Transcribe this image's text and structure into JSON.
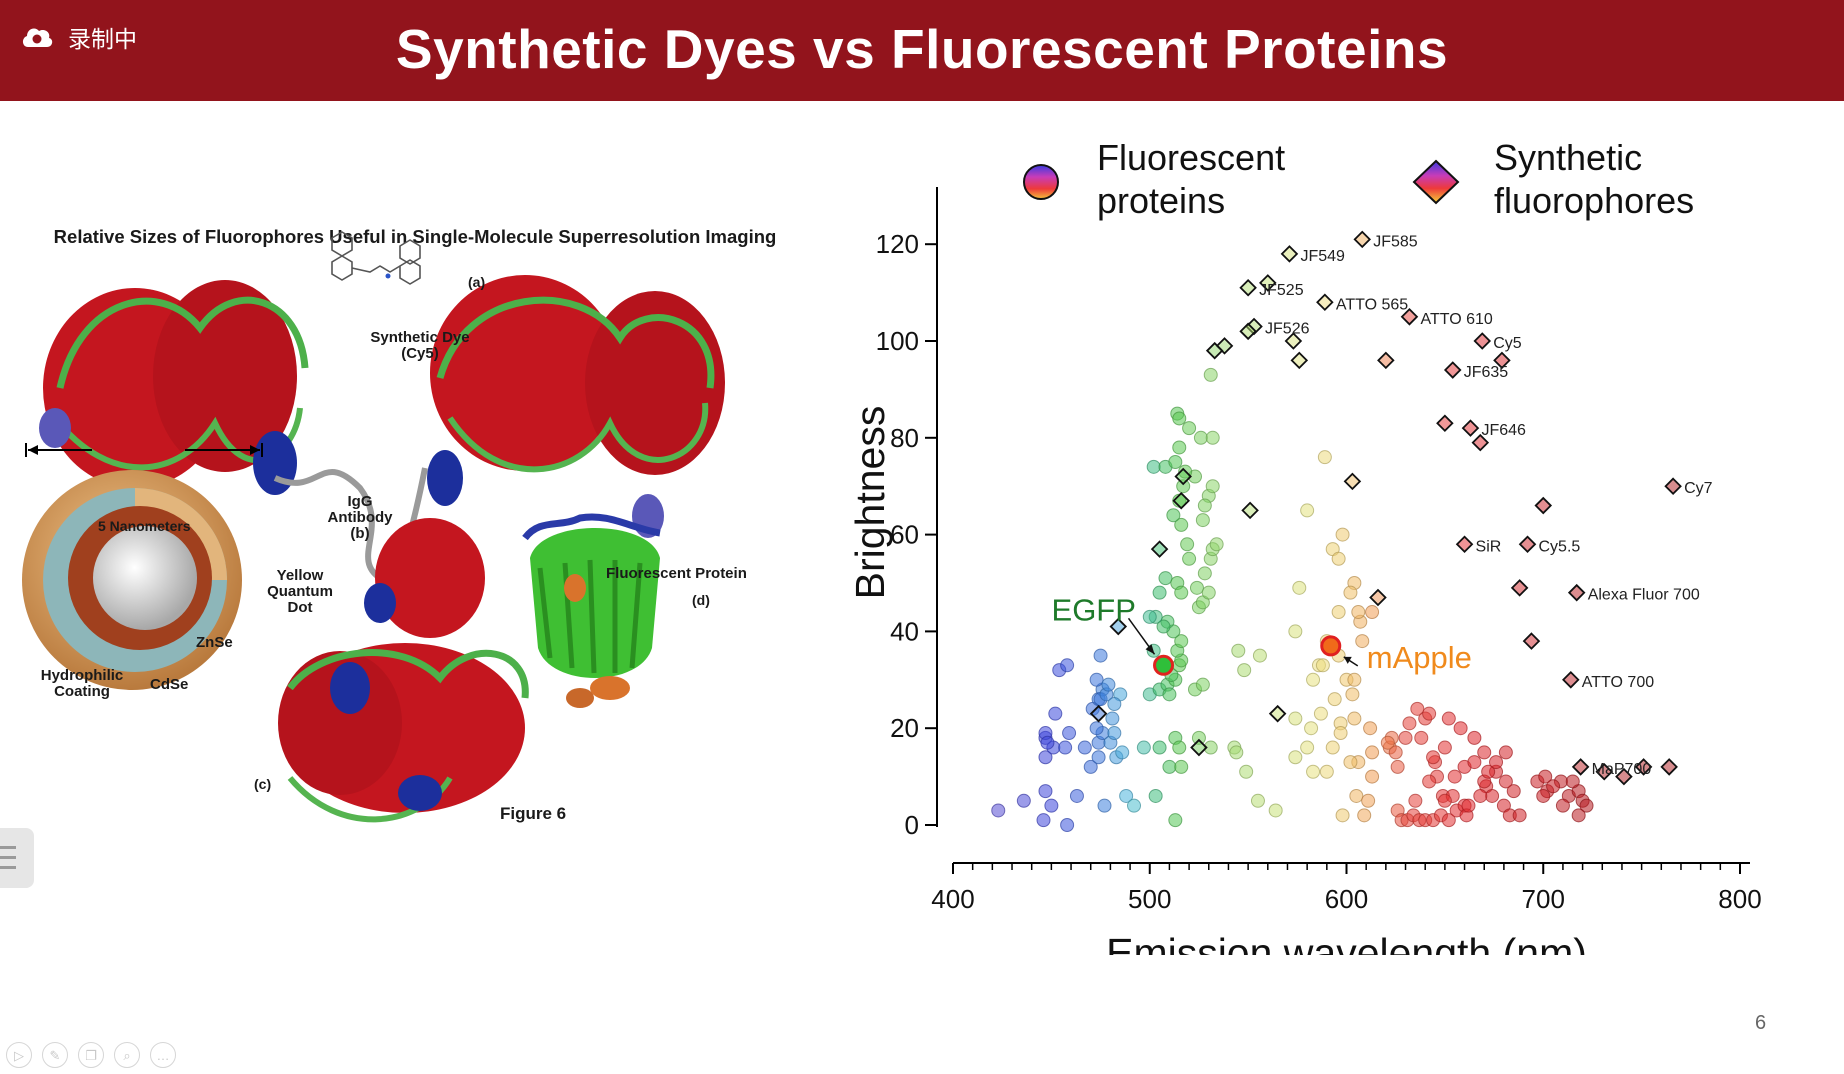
{
  "header": {
    "title": "Synthetic Dyes vs Fluorescent Proteins",
    "recording_label": "录制中"
  },
  "figure": {
    "title": "Relative Sizes of Fluorophores Useful in Single-Molecule Superresolution Imaging",
    "synthetic_dye": "Synthetic Dye",
    "synthetic_dye_sub": "(Cy5)",
    "label_a": "(a)",
    "scale": "5 Nanometers",
    "igg_1": "IgG",
    "igg_2": "Antibody",
    "igg_3": "(b)",
    "qd_1": "Yellow",
    "qd_2": "Quantum",
    "qd_3": "Dot",
    "znse": "ZnSe",
    "cdse": "CdSe",
    "hydro_1": "Hydrophilic",
    "hydro_2": "Coating",
    "label_c": "(c)",
    "fp": "Fluorescent Protein",
    "label_d": "(d)",
    "caption": "Figure 6"
  },
  "page_number": "6",
  "chart_data": {
    "type": "scatter",
    "xlabel": "Emission wavelength (nm)",
    "ylabel": "Brightness",
    "xlim": [
      400,
      800
    ],
    "ylim": [
      0,
      125
    ],
    "xticks": [
      400,
      500,
      600,
      700,
      800
    ],
    "yticks": [
      0,
      20,
      40,
      60,
      80,
      100,
      120
    ],
    "legend_position": "top",
    "legend": [
      {
        "label_line1": "Fluorescent",
        "label_line2": "proteins",
        "marker": "circle"
      },
      {
        "label_line1": "Synthetic",
        "label_line2": "fluorophores",
        "marker": "diamond"
      }
    ],
    "series": [
      {
        "marker": "circle",
        "points": [
          [
            423,
            3
          ],
          [
            436,
            5
          ],
          [
            446,
            1
          ],
          [
            447,
            7
          ],
          [
            458,
            0
          ],
          [
            450,
            4
          ],
          [
            463,
            6
          ],
          [
            477,
            4
          ],
          [
            470,
            12
          ],
          [
            488,
            6
          ],
          [
            492,
            4
          ],
          [
            503,
            6
          ],
          [
            513,
            1
          ],
          [
            447,
            14
          ],
          [
            447,
            18
          ],
          [
            447,
            19
          ],
          [
            451,
            16
          ],
          [
            452,
            23
          ],
          [
            448,
            17
          ],
          [
            457,
            16
          ],
          [
            459,
            19
          ],
          [
            467,
            16
          ],
          [
            474,
            14
          ],
          [
            474,
            17
          ],
          [
            476,
            19
          ],
          [
            480,
            17
          ],
          [
            483,
            14
          ],
          [
            482,
            19
          ],
          [
            486,
            15
          ],
          [
            481,
            22
          ],
          [
            473,
            20
          ],
          [
            471,
            24
          ],
          [
            474,
            26
          ],
          [
            476,
            28
          ],
          [
            473,
            30
          ],
          [
            475,
            26
          ],
          [
            478,
            27
          ],
          [
            475,
            35
          ],
          [
            479,
            29
          ],
          [
            485,
            27
          ],
          [
            482,
            25
          ],
          [
            454,
            32
          ],
          [
            458,
            33
          ],
          [
            497,
            16
          ],
          [
            505,
            16
          ],
          [
            513,
            18
          ],
          [
            515,
            16
          ],
          [
            525,
            18
          ],
          [
            510,
            12
          ],
          [
            516,
            12
          ],
          [
            531,
            16
          ],
          [
            543,
            16
          ],
          [
            500,
            27
          ],
          [
            505,
            28
          ],
          [
            509,
            29
          ],
          [
            510,
            27
          ],
          [
            513,
            30
          ],
          [
            511,
            31
          ],
          [
            515,
            33
          ],
          [
            516,
            34
          ],
          [
            514,
            36
          ],
          [
            516,
            38
          ],
          [
            512,
            40
          ],
          [
            509,
            42
          ],
          [
            507,
            41
          ],
          [
            503,
            43
          ],
          [
            500,
            43
          ],
          [
            502,
            36
          ],
          [
            505,
            48
          ],
          [
            508,
            51
          ],
          [
            514,
            50
          ],
          [
            516,
            48
          ],
          [
            525,
            45
          ],
          [
            527,
            46
          ],
          [
            524,
            49
          ],
          [
            530,
            48
          ],
          [
            528,
            52
          ],
          [
            531,
            55
          ],
          [
            532,
            57
          ],
          [
            534,
            58
          ],
          [
            520,
            55
          ],
          [
            519,
            58
          ],
          [
            516,
            62
          ],
          [
            512,
            64
          ],
          [
            515,
            67
          ],
          [
            517,
            70
          ],
          [
            523,
            72
          ],
          [
            530,
            68
          ],
          [
            532,
            70
          ],
          [
            528,
            66
          ],
          [
            527,
            63
          ],
          [
            518,
            73
          ],
          [
            502,
            74
          ],
          [
            508,
            74
          ],
          [
            513,
            75
          ],
          [
            515,
            78
          ],
          [
            514,
            85
          ],
          [
            515,
            84
          ],
          [
            520,
            82
          ],
          [
            526,
            80
          ],
          [
            532,
            80
          ],
          [
            531,
            93
          ],
          [
            523,
            28
          ],
          [
            527,
            29
          ],
          [
            545,
            36
          ],
          [
            556,
            35
          ],
          [
            548,
            32
          ],
          [
            544,
            15
          ],
          [
            549,
            11
          ],
          [
            555,
            5
          ],
          [
            564,
            3
          ],
          [
            574,
            22
          ],
          [
            582,
            20
          ],
          [
            586,
            33
          ],
          [
            574,
            40
          ],
          [
            576,
            49
          ],
          [
            580,
            65
          ],
          [
            589,
            76
          ],
          [
            593,
            57
          ],
          [
            596,
            55
          ],
          [
            598,
            60
          ],
          [
            604,
            50
          ],
          [
            602,
            48
          ],
          [
            596,
            44
          ],
          [
            590,
            38
          ],
          [
            588,
            33
          ],
          [
            583,
            30
          ],
          [
            587,
            23
          ],
          [
            597,
            21
          ],
          [
            594,
            26
          ],
          [
            600,
            30
          ],
          [
            603,
            27
          ],
          [
            596,
            35
          ],
          [
            604,
            30
          ],
          [
            607,
            42
          ],
          [
            606,
            44
          ],
          [
            608,
            38
          ],
          [
            613,
            44
          ],
          [
            606,
            13
          ],
          [
            613,
            15
          ],
          [
            602,
            13
          ],
          [
            593,
            16
          ],
          [
            597,
            19
          ],
          [
            604,
            22
          ],
          [
            612,
            20
          ],
          [
            613,
            10
          ],
          [
            605,
            6
          ],
          [
            598,
            2
          ],
          [
            609,
            2
          ],
          [
            611,
            5
          ],
          [
            574,
            14
          ],
          [
            580,
            16
          ],
          [
            583,
            11
          ],
          [
            590,
            11
          ],
          [
            626,
            12
          ],
          [
            630,
            18
          ],
          [
            632,
            21
          ],
          [
            636,
            24
          ],
          [
            640,
            22
          ],
          [
            638,
            18
          ],
          [
            645,
            13
          ],
          [
            650,
            16
          ],
          [
            646,
            10
          ],
          [
            635,
            5
          ],
          [
            642,
            9
          ],
          [
            649,
            6
          ],
          [
            655,
            10
          ],
          [
            660,
            12
          ],
          [
            665,
            13
          ],
          [
            671,
            8
          ],
          [
            674,
            6
          ],
          [
            680,
            4
          ],
          [
            683,
            2
          ],
          [
            676,
            11
          ],
          [
            685,
            7
          ],
          [
            670,
            15
          ],
          [
            665,
            18
          ],
          [
            658,
            20
          ],
          [
            652,
            22
          ],
          [
            642,
            23
          ],
          [
            626,
            3
          ],
          [
            628,
            1
          ],
          [
            631,
            1
          ],
          [
            634,
            2
          ],
          [
            637,
            1
          ],
          [
            640,
            1
          ],
          [
            644,
            1
          ],
          [
            648,
            2
          ],
          [
            652,
            1
          ],
          [
            656,
            3
          ],
          [
            660,
            4
          ],
          [
            661,
            2
          ],
          [
            654,
            6
          ],
          [
            644,
            14
          ],
          [
            650,
            5
          ],
          [
            662,
            4
          ],
          [
            668,
            6
          ],
          [
            670,
            9
          ],
          [
            672,
            11
          ],
          [
            676,
            13
          ],
          [
            681,
            15
          ],
          [
            681,
            9
          ],
          [
            688,
            2
          ],
          [
            697,
            9
          ],
          [
            701,
            10
          ],
          [
            702,
            7
          ],
          [
            709,
            9
          ],
          [
            713,
            6
          ],
          [
            718,
            7
          ],
          [
            720,
            5
          ],
          [
            722,
            4
          ],
          [
            718,
            2
          ],
          [
            715,
            9
          ],
          [
            705,
            8
          ],
          [
            700,
            6
          ],
          [
            710,
            4
          ],
          [
            622,
            16
          ],
          [
            623,
            18
          ],
          [
            625,
            15
          ],
          [
            621,
            17
          ]
        ]
      },
      {
        "marker": "diamond",
        "points": [
          [
            474,
            23
          ],
          [
            484,
            41
          ],
          [
            505,
            57
          ],
          [
            516,
            67
          ],
          [
            517,
            72
          ],
          [
            525,
            16
          ],
          [
            551,
            65
          ],
          [
            565,
            23
          ],
          [
            550,
            111
          ],
          [
            560,
            112
          ],
          [
            553,
            103
          ],
          [
            550,
            102
          ],
          [
            538,
            99
          ],
          [
            533,
            98
          ],
          [
            571,
            118
          ],
          [
            608,
            121
          ],
          [
            573,
            100
          ],
          [
            576,
            96
          ],
          [
            589,
            108
          ],
          [
            620,
            96
          ],
          [
            632,
            105
          ],
          [
            654,
            94
          ],
          [
            669,
            100
          ],
          [
            679,
            96
          ],
          [
            650,
            83
          ],
          [
            663,
            82
          ],
          [
            668,
            79
          ],
          [
            603,
            71
          ],
          [
            616,
            47
          ],
          [
            660,
            58
          ],
          [
            692,
            58
          ],
          [
            688,
            49
          ],
          [
            700,
            66
          ],
          [
            717,
            48
          ],
          [
            694,
            38
          ],
          [
            714,
            30
          ],
          [
            719,
            12
          ],
          [
            731,
            11
          ],
          [
            741,
            10
          ],
          [
            751,
            12
          ],
          [
            764,
            12
          ],
          [
            766,
            70
          ]
        ]
      }
    ],
    "highlights": [
      {
        "label": "EGFP",
        "x": 507,
        "y": 33,
        "color": "#1e7a2a"
      },
      {
        "label": "mApple",
        "x": 592,
        "y": 37,
        "color": "#f08a1c"
      }
    ],
    "annotations": [
      {
        "label": "JF585",
        "x": 608,
        "y": 121
      },
      {
        "label": "JF549",
        "x": 571,
        "y": 118
      },
      {
        "label": "JF525",
        "x": 550,
        "y": 111
      },
      {
        "label": "ATTO 565",
        "x": 589,
        "y": 108
      },
      {
        "label": "ATTO 610",
        "x": 632,
        "y": 105
      },
      {
        "label": "JF526",
        "x": 553,
        "y": 103
      },
      {
        "label": "Cy5",
        "x": 669,
        "y": 100
      },
      {
        "label": "JF635",
        "x": 654,
        "y": 94
      },
      {
        "label": "JF646",
        "x": 663,
        "y": 82
      },
      {
        "label": "Cy7",
        "x": 766,
        "y": 70
      },
      {
        "label": "SiR",
        "x": 660,
        "y": 58
      },
      {
        "label": "Cy5.5",
        "x": 692,
        "y": 58
      },
      {
        "label": "Alexa Fluor 700",
        "x": 717,
        "y": 48
      },
      {
        "label": "ATTO 700",
        "x": 714,
        "y": 30
      },
      {
        "label": "MaP700",
        "x": 719,
        "y": 12
      }
    ]
  }
}
